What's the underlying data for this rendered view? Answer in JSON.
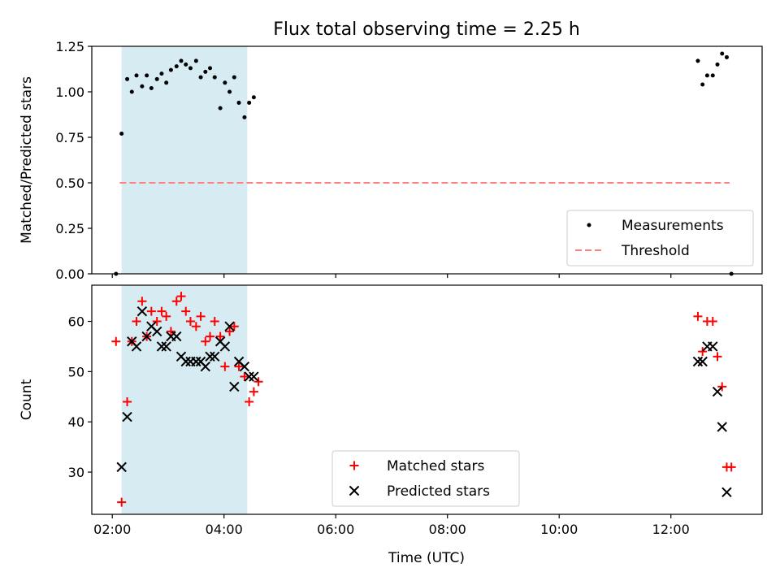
{
  "chart_data": [
    {
      "type": "scatter",
      "title": "Flux total observing time = 2.25 h",
      "xlabel": "",
      "ylabel": "Matched/Predicted stars",
      "xlim": [
        "01:38",
        "13:38"
      ],
      "ylim": [
        0,
        1.25
      ],
      "yticks": [
        "0.00",
        "0.25",
        "0.50",
        "0.75",
        "1.00",
        "1.25"
      ],
      "grid": false,
      "legend_position": "lower-right",
      "shaded_span": [
        "02:10",
        "04:25"
      ],
      "series": [
        {
          "name": "Measurements",
          "color": "#000000",
          "marker": "dot",
          "points": [
            [
              "02:04",
              0.0
            ],
            [
              "02:10",
              0.77
            ],
            [
              "02:16",
              1.07
            ],
            [
              "02:21",
              1.0
            ],
            [
              "02:26",
              1.09
            ],
            [
              "02:32",
              1.03
            ],
            [
              "02:37",
              1.09
            ],
            [
              "02:42",
              1.02
            ],
            [
              "02:48",
              1.07
            ],
            [
              "02:53",
              1.1
            ],
            [
              "02:58",
              1.05
            ],
            [
              "03:03",
              1.12
            ],
            [
              "03:09",
              1.14
            ],
            [
              "03:14",
              1.17
            ],
            [
              "03:19",
              1.15
            ],
            [
              "03:24",
              1.13
            ],
            [
              "03:30",
              1.17
            ],
            [
              "03:35",
              1.08
            ],
            [
              "03:40",
              1.11
            ],
            [
              "03:45",
              1.13
            ],
            [
              "03:50",
              1.08
            ],
            [
              "03:56",
              0.91
            ],
            [
              "04:01",
              1.05
            ],
            [
              "04:06",
              1.0
            ],
            [
              "04:11",
              1.08
            ],
            [
              "04:16",
              0.94
            ],
            [
              "04:22",
              0.86
            ],
            [
              "04:27",
              0.94
            ],
            [
              "04:32",
              0.97
            ],
            [
              "12:29",
              1.17
            ],
            [
              "12:34",
              1.04
            ],
            [
              "12:39",
              1.09
            ],
            [
              "12:45",
              1.09
            ],
            [
              "12:50",
              1.15
            ],
            [
              "12:55",
              1.21
            ],
            [
              "13:00",
              1.19
            ],
            [
              "13:05",
              0.0
            ]
          ]
        },
        {
          "name": "Threshold",
          "color": "#ff8080",
          "style": "dashed",
          "points": [
            [
              "02:08",
              0.5
            ],
            [
              "13:03",
              0.5
            ]
          ]
        }
      ]
    },
    {
      "type": "scatter",
      "title": "",
      "xlabel": "Time (UTC)",
      "ylabel": "Count",
      "xlim": [
        "01:38",
        "13:38"
      ],
      "ylim": [
        21.6,
        67.2
      ],
      "yticks": [
        "30",
        "40",
        "50",
        "60"
      ],
      "xticks": [
        "02:00",
        "04:00",
        "06:00",
        "08:00",
        "10:00",
        "12:00"
      ],
      "grid": false,
      "legend_position": "lower-center",
      "shaded_span": [
        "02:10",
        "04:25"
      ],
      "series": [
        {
          "name": "Matched stars",
          "color": "#ff0000",
          "marker": "plus",
          "points": [
            [
              "02:04",
              56
            ],
            [
              "02:10",
              24
            ],
            [
              "02:16",
              44
            ],
            [
              "02:21",
              56
            ],
            [
              "02:26",
              60
            ],
            [
              "02:32",
              64
            ],
            [
              "02:37",
              57
            ],
            [
              "02:42",
              62
            ],
            [
              "02:48",
              60
            ],
            [
              "02:53",
              62
            ],
            [
              "02:58",
              61
            ],
            [
              "03:03",
              58
            ],
            [
              "03:09",
              64
            ],
            [
              "03:14",
              65
            ],
            [
              "03:19",
              62
            ],
            [
              "03:24",
              60
            ],
            [
              "03:30",
              59
            ],
            [
              "03:35",
              61
            ],
            [
              "03:40",
              56
            ],
            [
              "03:45",
              57
            ],
            [
              "03:50",
              60
            ],
            [
              "03:56",
              57
            ],
            [
              "04:01",
              51
            ],
            [
              "04:06",
              58
            ],
            [
              "04:11",
              59
            ],
            [
              "04:16",
              51
            ],
            [
              "04:22",
              49
            ],
            [
              "04:27",
              44
            ],
            [
              "04:32",
              46
            ],
            [
              "04:37",
              48
            ],
            [
              "12:29",
              61
            ],
            [
              "12:34",
              54
            ],
            [
              "12:39",
              60
            ],
            [
              "12:45",
              60
            ],
            [
              "12:50",
              53
            ],
            [
              "12:55",
              47
            ],
            [
              "13:00",
              31
            ],
            [
              "13:05",
              31
            ]
          ]
        },
        {
          "name": "Predicted stars",
          "color": "#000000",
          "marker": "x",
          "points": [
            [
              "02:10",
              31
            ],
            [
              "02:16",
              41
            ],
            [
              "02:21",
              56
            ],
            [
              "02:26",
              55
            ],
            [
              "02:32",
              62
            ],
            [
              "02:37",
              57
            ],
            [
              "02:42",
              59
            ],
            [
              "02:48",
              58
            ],
            [
              "02:53",
              55
            ],
            [
              "02:58",
              55
            ],
            [
              "03:03",
              57
            ],
            [
              "03:09",
              57
            ],
            [
              "03:14",
              53
            ],
            [
              "03:19",
              52
            ],
            [
              "03:24",
              52
            ],
            [
              "03:30",
              52
            ],
            [
              "03:35",
              52
            ],
            [
              "03:40",
              51
            ],
            [
              "03:45",
              53
            ],
            [
              "03:50",
              53
            ],
            [
              "03:56",
              56
            ],
            [
              "04:01",
              55
            ],
            [
              "04:06",
              59
            ],
            [
              "04:11",
              47
            ],
            [
              "04:16",
              52
            ],
            [
              "04:22",
              51
            ],
            [
              "04:27",
              49
            ],
            [
              "04:32",
              49
            ],
            [
              "12:29",
              52
            ],
            [
              "12:34",
              52
            ],
            [
              "12:39",
              55
            ],
            [
              "12:45",
              55
            ],
            [
              "12:50",
              46
            ],
            [
              "12:55",
              39
            ],
            [
              "13:00",
              26
            ]
          ]
        }
      ]
    }
  ],
  "colors": {
    "shade": "#add8e6",
    "axis": "#000000"
  }
}
